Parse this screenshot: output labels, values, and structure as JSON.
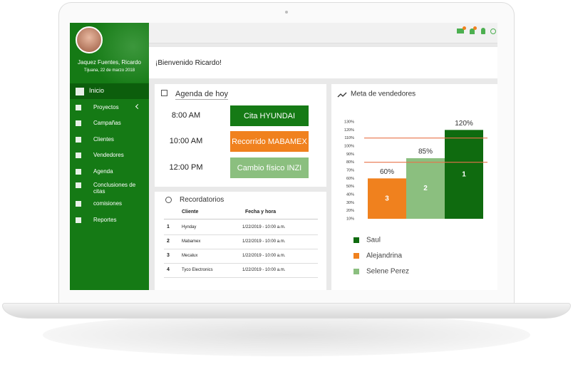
{
  "user": {
    "name": "Jaquez Fuentes, Ricardo",
    "location": "Tijuana, 22 de marzo 2018"
  },
  "menu": [
    "Inicio",
    "Proyectos",
    "Campañas",
    "Clientes",
    "Vendedores",
    "Agenda",
    "Conclusiones de citas",
    "comisiones",
    "Reportes"
  ],
  "welcome": "¡Bienvenido Ricardo!",
  "agenda": {
    "title": "Agenda de hoy",
    "items": [
      {
        "time": "8:00 AM",
        "label": "Cita HYUNDAI"
      },
      {
        "time": "10:00 AM",
        "label": "Recorrido MABAMEX"
      },
      {
        "time": "12:00 PM",
        "label": "Cambio físico INZI"
      }
    ]
  },
  "reminders": {
    "title": "Recordatorios",
    "columns": [
      "Cliente",
      "Fecha y hora"
    ],
    "rows": [
      [
        1,
        "Hynday",
        "1/22/2019 - 10:00 a.m."
      ],
      [
        2,
        "Mabamex",
        "1/22/2019 - 10:00 a.m."
      ],
      [
        3,
        "Mecalux",
        "1/22/2019 - 10:00 a.m."
      ],
      [
        4,
        "Tyco Electronics",
        "1/22/2019 - 10:00 a.m."
      ]
    ]
  },
  "chart_data": {
    "type": "bar",
    "title": "Meta de vendedores",
    "categories": [
      "Alejandrina",
      "Selene Perez",
      "Saul"
    ],
    "values": [
      60,
      85,
      120
    ],
    "value_labels": [
      "60%",
      "85%",
      "120%"
    ],
    "ranks": [
      3,
      2,
      1
    ],
    "colors": [
      "#f0811e",
      "#8bbf7f",
      "#0f6b0f"
    ],
    "ylim": [
      10,
      130
    ],
    "yticks": [
      {
        "value": 10,
        "label": "10%"
      },
      {
        "value": 20,
        "label": "20%"
      },
      {
        "value": 30,
        "label": "30%"
      },
      {
        "value": 40,
        "label": "40%"
      },
      {
        "value": 50,
        "label": "50%"
      },
      {
        "value": 60,
        "label": "60%"
      },
      {
        "value": 70,
        "label": "70%"
      },
      {
        "value": 80,
        "label": "80%"
      },
      {
        "value": 90,
        "label": "90%"
      },
      {
        "value": 100,
        "label": "100%"
      },
      {
        "value": 110,
        "label": "110%"
      },
      {
        "value": 120,
        "label": "120%"
      },
      {
        "value": 130,
        "label": "130%"
      }
    ],
    "reference_lines": [
      110,
      80
    ],
    "reference_color": "#e8734a"
  }
}
